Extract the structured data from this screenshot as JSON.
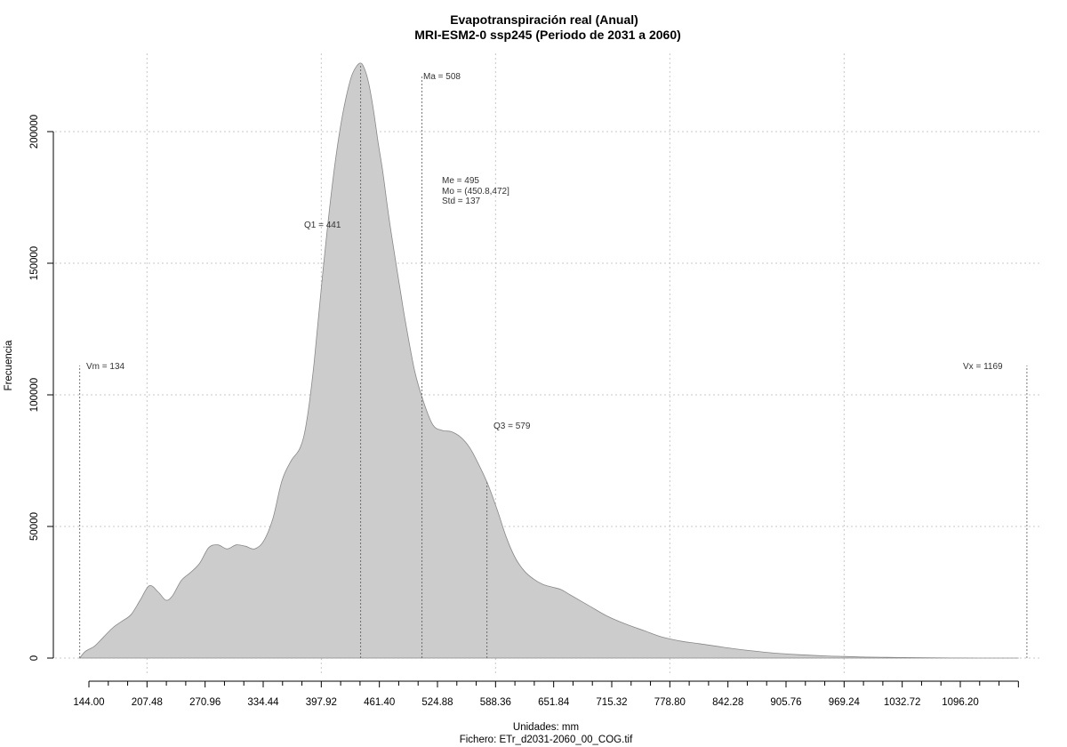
{
  "chart_data": {
    "type": "area",
    "title": "Evapotranspiración real (Anual)",
    "subtitle": "MRI-ESM2-0 ssp245 (Periodo de 2031 a 2060)",
    "xlabel": "Unidades: mm",
    "ylabel": "Frecuencia",
    "file_label": "Fichero: ETr_d2031-2060_00_COG.tif",
    "xlim": [
      115,
      1180
    ],
    "ylim": [
      0,
      225000
    ],
    "grid": true,
    "x_ticks": [
      "144.00",
      "207.48",
      "270.96",
      "334.44",
      "397.92",
      "461.40",
      "524.88",
      "588.36",
      "651.84",
      "715.32",
      "778.80",
      "842.28",
      "905.76",
      "969.24",
      "1032.72",
      "1096.20"
    ],
    "x_tick_values": [
      144.0,
      207.48,
      270.96,
      334.44,
      397.92,
      461.4,
      524.88,
      588.36,
      651.84,
      715.32,
      778.8,
      842.28,
      905.76,
      969.24,
      1032.72,
      1096.2
    ],
    "x_minor_step": 21.16,
    "y_ticks": [
      "0",
      "50000",
      "100000",
      "150000",
      "200000"
    ],
    "y_tick_values": [
      0,
      50000,
      100000,
      150000,
      200000
    ],
    "x_grid_values": [
      207.48,
      397.92,
      588.36,
      778.8,
      969.24
    ],
    "density": {
      "x": [
        134,
        140,
        150,
        160,
        170,
        180,
        190,
        200,
        210,
        220,
        228,
        235,
        245,
        255,
        265,
        275,
        285,
        295,
        305,
        315,
        325,
        335,
        345,
        355,
        365,
        375,
        382,
        390,
        400,
        410,
        418,
        425,
        432,
        440,
        445,
        450,
        455,
        460,
        465,
        470,
        475,
        480,
        485,
        490,
        500,
        510,
        520,
        530,
        540,
        550,
        560,
        570,
        580,
        590,
        600,
        610,
        620,
        630,
        640,
        650,
        660,
        670,
        690,
        710,
        730,
        750,
        770,
        790,
        810,
        830,
        850,
        870,
        890,
        910,
        930,
        950,
        970,
        990,
        1010,
        1030,
        1060,
        1100,
        1140,
        1160
      ],
      "y": [
        0,
        2500,
        4500,
        8000,
        11500,
        14000,
        16500,
        22000,
        27500,
        25000,
        22000,
        23500,
        29500,
        32500,
        36000,
        42000,
        43000,
        41500,
        43000,
        42500,
        41500,
        44500,
        53000,
        67500,
        75000,
        80000,
        90000,
        112000,
        148000,
        180000,
        200000,
        213000,
        222000,
        226000,
        224000,
        218000,
        208000,
        196000,
        185000,
        172000,
        160000,
        149000,
        138000,
        127500,
        109000,
        97000,
        88500,
        86500,
        86000,
        84000,
        80000,
        73500,
        66000,
        56500,
        46000,
        38000,
        33000,
        30000,
        28000,
        27000,
        26000,
        24000,
        20000,
        16000,
        13000,
        10500,
        8000,
        6500,
        5500,
        4500,
        3500,
        2700,
        2000,
        1500,
        1100,
        800,
        600,
        400,
        300,
        200,
        100,
        30,
        0,
        0
      ]
    },
    "annotations": {
      "vm": {
        "x": 134,
        "label": "Vm = 134"
      },
      "q1": {
        "x": 441,
        "label": "Q1 = 441"
      },
      "ma": {
        "x": 508,
        "label": "Ma = 508"
      },
      "q3": {
        "x": 579,
        "label": "Q3 = 579"
      },
      "vx": {
        "x": 1169,
        "label": "Vx = 1169"
      },
      "stats": [
        "Me = 495",
        "Mo = (450.8,472]",
        "Std = 137"
      ]
    },
    "colors": {
      "fill": "#cccccc",
      "stroke": "#888888",
      "grid": "#c8c8c8"
    }
  }
}
